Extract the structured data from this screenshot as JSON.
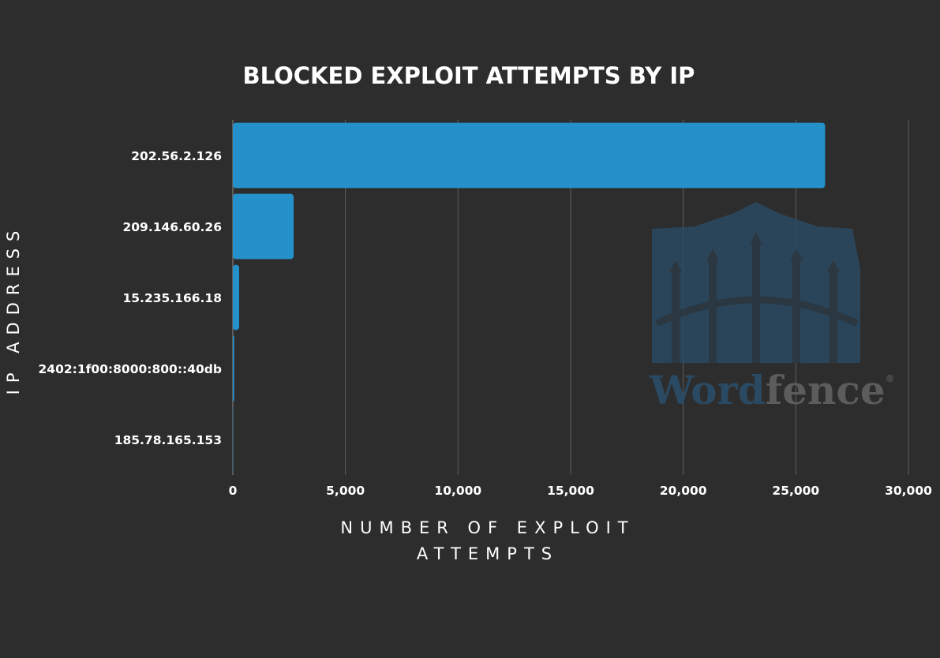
{
  "chart_data": {
    "type": "bar",
    "orientation": "horizontal",
    "title": "BLOCKED EXPLOIT ATTEMPTS BY IP",
    "xlabel": [
      "NUMBER OF EXPLOIT",
      "ATTEMPTS"
    ],
    "ylabel": "IP ADDRESS",
    "categories": [
      "202.56.2.126",
      "209.146.60.26",
      "15.235.166.18",
      "2402:1f00:8000:800::40db",
      "185.78.165.153"
    ],
    "values": [
      26300,
      2700,
      280,
      60,
      10
    ],
    "xlim": [
      0,
      30000
    ],
    "xticks": [
      0,
      5000,
      10000,
      15000,
      20000,
      25000,
      30000
    ],
    "xtick_labels": [
      "0",
      "5,000",
      "10,000",
      "15,000",
      "20,000",
      "25,000",
      "30,000"
    ],
    "grid": "vertical",
    "bar_color": "#2491cb",
    "background": "#2d2d2d"
  },
  "watermark": {
    "parts": [
      "Word",
      "fence"
    ],
    "registered": "®",
    "colors": [
      "#2a4a63",
      "#5c5c5c"
    ]
  }
}
